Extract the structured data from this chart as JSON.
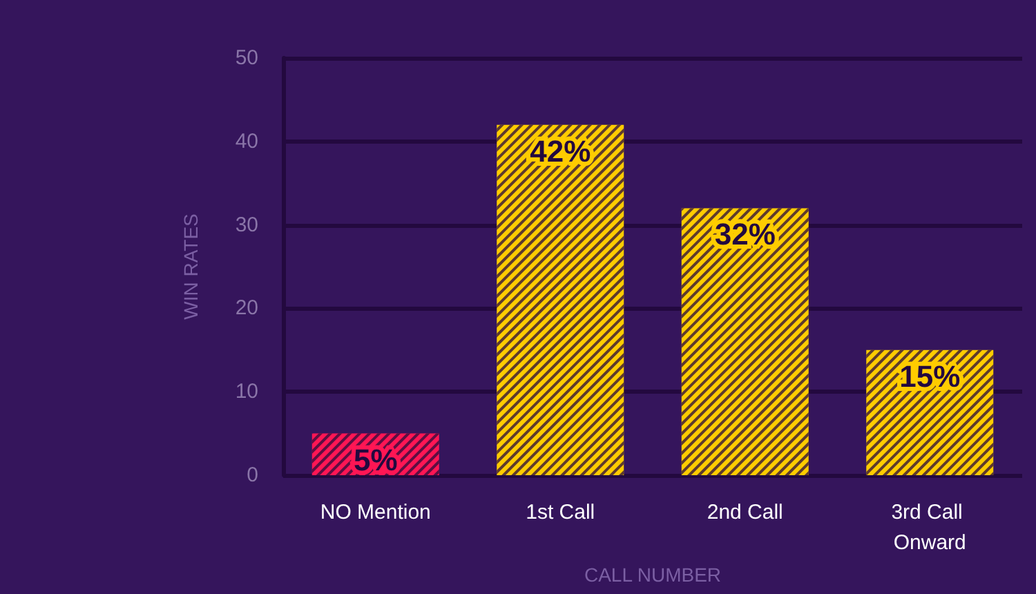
{
  "chart_data": {
    "type": "bar",
    "xlabel": "CALL NUMBER",
    "ylabel": "WIN RATES",
    "categories": [
      "NO Mention",
      "1st Call",
      "2nd Call",
      "3rd Call Onward"
    ],
    "values": [
      5,
      42,
      32,
      15
    ],
    "colors": [
      "#ff1654",
      "#ffcc00",
      "#ffcc00",
      "#ffcc00"
    ],
    "value_labels": [
      "5%",
      "42%",
      "32%",
      "15%"
    ],
    "ylim": [
      0,
      50
    ],
    "yticks": [
      0,
      10,
      20,
      30,
      40,
      50
    ],
    "grid": "y"
  }
}
